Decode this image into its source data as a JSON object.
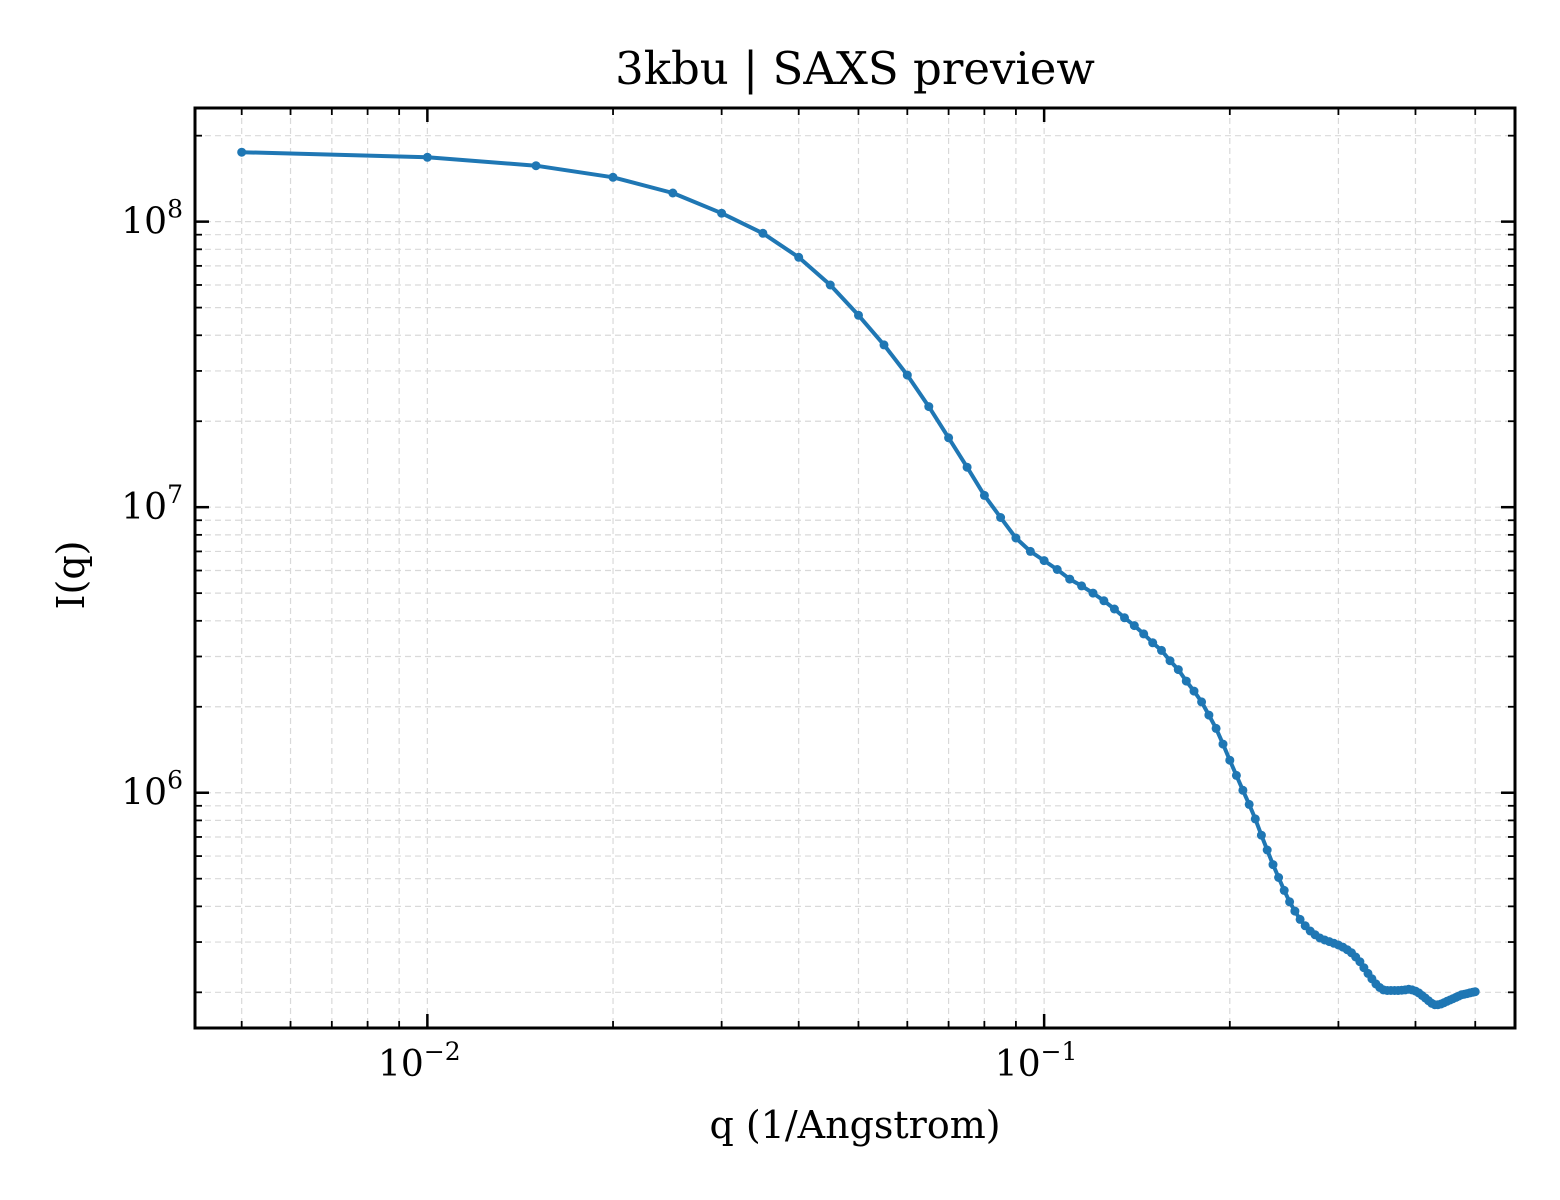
{
  "chart_data": {
    "type": "line",
    "title": "3kbu | SAXS preview",
    "xlabel": "q (1/Angstrom)",
    "ylabel": "I(q)",
    "xscale": "log",
    "yscale": "log",
    "xlim": [
      0.0042,
      0.58
    ],
    "ylim": [
      150000,
      250000000
    ],
    "grid": true,
    "legend": "none",
    "x_ticks": [
      {
        "value": 0.01,
        "base": "10",
        "exp": "−2"
      },
      {
        "value": 0.1,
        "base": "10",
        "exp": "−1"
      }
    ],
    "y_ticks": [
      {
        "value": 1000000,
        "base": "10",
        "exp": "6"
      },
      {
        "value": 10000000,
        "base": "10",
        "exp": "7"
      },
      {
        "value": 100000000,
        "base": "10",
        "exp": "8"
      }
    ],
    "colors": {
      "line": "#1f77b4",
      "grid": "#d9d9d9",
      "axes": "#000000"
    },
    "series": [
      {
        "x": [
          0.005,
          0.01,
          0.015,
          0.02,
          0.025,
          0.03,
          0.035,
          0.04,
          0.045,
          0.05,
          0.055,
          0.06,
          0.065,
          0.07,
          0.075,
          0.08,
          0.085,
          0.09,
          0.095,
          0.1,
          0.105,
          0.11,
          0.115,
          0.12,
          0.125,
          0.13,
          0.135,
          0.14,
          0.145,
          0.15,
          0.155,
          0.16,
          0.165,
          0.17,
          0.175,
          0.18,
          0.185,
          0.19,
          0.195,
          0.2,
          0.205,
          0.21,
          0.215,
          0.22,
          0.225,
          0.23,
          0.235,
          0.24,
          0.245,
          0.25,
          0.255,
          0.26,
          0.265,
          0.27,
          0.275,
          0.28,
          0.285,
          0.29,
          0.295,
          0.3,
          0.305,
          0.31,
          0.315,
          0.32,
          0.325,
          0.33,
          0.335,
          0.34,
          0.345,
          0.35,
          0.355,
          0.36,
          0.365,
          0.37,
          0.375,
          0.38,
          0.385,
          0.39,
          0.395,
          0.4,
          0.405,
          0.41,
          0.415,
          0.42,
          0.425,
          0.43,
          0.435,
          0.44,
          0.445,
          0.45,
          0.455,
          0.46,
          0.465,
          0.47,
          0.475,
          0.48,
          0.485,
          0.49,
          0.495,
          0.5
        ],
        "y": [
          175000000,
          168000000,
          157000000,
          143000000,
          126000000,
          107000000,
          91000000,
          75000000,
          60000000,
          47000000,
          37000000,
          29000000,
          22500000,
          17500000,
          13800000,
          11000000,
          9200000,
          7800000,
          7000000,
          6500000,
          6050000,
          5600000,
          5300000,
          5000000,
          4700000,
          4400000,
          4100000,
          3850000,
          3600000,
          3350000,
          3150000,
          2900000,
          2700000,
          2460000,
          2270000,
          2080000,
          1870000,
          1680000,
          1480000,
          1300000,
          1150000,
          1020000,
          910000,
          810000,
          710000,
          630000,
          560000,
          505000,
          455000,
          415000,
          385000,
          360000,
          342000,
          328000,
          318000,
          310000,
          305000,
          301000,
          297000,
          293000,
          288000,
          282000,
          275000,
          266000,
          256000,
          244000,
          233000,
          223000,
          214000,
          208000,
          204000,
          203000,
          203000,
          203000,
          203000,
          203500,
          204000,
          205000,
          204000,
          202000,
          199000,
          195000,
          191000,
          187000,
          183000,
          181000,
          181000,
          182000,
          184000,
          186000,
          188000,
          190000,
          192000,
          194000,
          196000,
          197000,
          198000,
          199000,
          200000,
          201000
        ]
      }
    ]
  }
}
